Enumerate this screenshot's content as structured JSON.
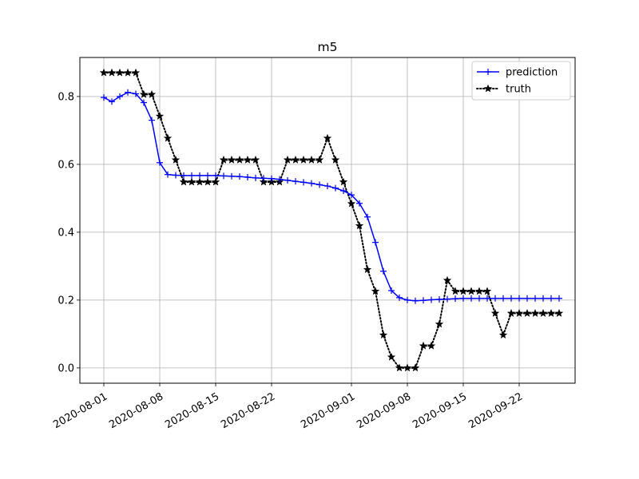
{
  "chart_data": {
    "type": "line",
    "title": "m5",
    "xlabel": "",
    "ylabel": "",
    "x_start": "2020-08-01",
    "x_ticks": [
      "2020-08-01",
      "2020-08-08",
      "2020-08-15",
      "2020-08-22",
      "2020-09-01",
      "2020-09-08",
      "2020-09-15",
      "2020-09-22"
    ],
    "y_ticks": [
      "0.0",
      "0.2",
      "0.4",
      "0.6",
      "0.8"
    ],
    "ylim": [
      -0.045,
      0.915
    ],
    "xlim": [
      "2020-07-29",
      "2020-09-29"
    ],
    "grid": true,
    "legend_position": "top-right",
    "series": [
      {
        "name": "prediction",
        "color": "#0000ff",
        "line_style": "solid",
        "marker": "plus",
        "values": [
          0.797,
          0.785,
          0.8,
          0.812,
          0.808,
          0.782,
          0.73,
          0.605,
          0.57,
          0.568,
          0.567,
          0.567,
          0.567,
          0.567,
          0.567,
          0.566,
          0.565,
          0.564,
          0.562,
          0.56,
          0.559,
          0.558,
          0.556,
          0.553,
          0.55,
          0.547,
          0.544,
          0.54,
          0.536,
          0.53,
          0.522,
          0.51,
          0.485,
          0.445,
          0.37,
          0.285,
          0.228,
          0.207,
          0.2,
          0.198,
          0.199,
          0.201,
          0.202,
          0.203,
          0.204,
          0.205,
          0.205,
          0.205,
          0.205,
          0.205,
          0.205,
          0.205,
          0.205,
          0.205,
          0.205,
          0.205,
          0.205,
          0.205
        ]
      },
      {
        "name": "truth",
        "color": "#000000",
        "line_style": "dotted",
        "marker": "star",
        "values": [
          0.87,
          0.87,
          0.87,
          0.87,
          0.87,
          0.806,
          0.806,
          0.742,
          0.677,
          0.613,
          0.548,
          0.548,
          0.548,
          0.548,
          0.548,
          0.613,
          0.613,
          0.613,
          0.613,
          0.613,
          0.548,
          0.548,
          0.548,
          0.613,
          0.613,
          0.613,
          0.613,
          0.613,
          0.677,
          0.613,
          0.548,
          0.484,
          0.419,
          0.29,
          0.226,
          0.097,
          0.032,
          0.0,
          0.0,
          0.0,
          0.065,
          0.065,
          0.129,
          0.258,
          0.226,
          0.226,
          0.226,
          0.226,
          0.226,
          0.161,
          0.097,
          0.161,
          0.161,
          0.161,
          0.161,
          0.161,
          0.161,
          0.161
        ]
      }
    ]
  }
}
